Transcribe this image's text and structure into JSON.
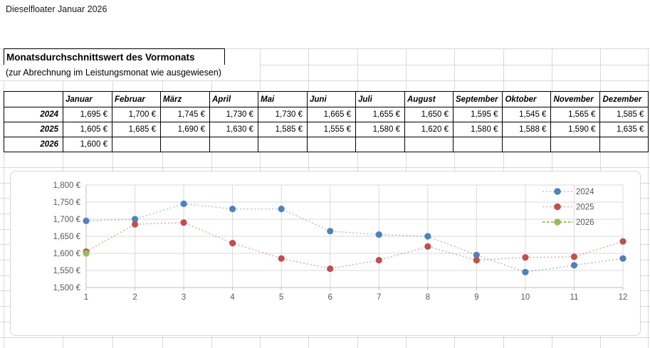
{
  "page": {
    "title": "Dieselfloater Januar 2026"
  },
  "section": {
    "heading": "Monatsdurchschnittswert des Vormonats",
    "subheading": "(zur Abrechnung im Leistungsmonat wie ausgewiesen)"
  },
  "table": {
    "corner": "",
    "columns": [
      "Januar",
      "Februar",
      "März",
      "April",
      "Mai",
      "Juni",
      "Juli",
      "August",
      "September",
      "Oktober",
      "November",
      "Dezember"
    ],
    "rows": [
      {
        "label": "2024",
        "values": [
          "1,695 €",
          "1,700 €",
          "1,745 €",
          "1,730 €",
          "1,730 €",
          "1,665 €",
          "1,655 €",
          "1,650 €",
          "1,595 €",
          "1,545 €",
          "1,565 €",
          "1,585 €"
        ]
      },
      {
        "label": "2025",
        "values": [
          "1,605 €",
          "1,685 €",
          "1,690 €",
          "1,630 €",
          "1,585 €",
          "1,555 €",
          "1,580 €",
          "1,620 €",
          "1,580 €",
          "1,588 €",
          "1,590 €",
          "1,635 €"
        ]
      },
      {
        "label": "2026",
        "values": [
          "1,600 €",
          "",
          "",
          "",
          "",
          "",
          "",
          "",
          "",
          "",
          "",
          ""
        ]
      }
    ]
  },
  "chart_data": {
    "type": "scatter",
    "x": [
      1,
      2,
      3,
      4,
      5,
      6,
      7,
      8,
      9,
      10,
      11,
      12
    ],
    "series": [
      {
        "name": "2024",
        "color": "#4F81BD",
        "values": [
          1695,
          1700,
          1745,
          1730,
          1730,
          1665,
          1655,
          1650,
          1595,
          1545,
          1565,
          1585
        ]
      },
      {
        "name": "2025",
        "color": "#C0504D",
        "values": [
          1605,
          1685,
          1690,
          1630,
          1585,
          1555,
          1580,
          1620,
          1580,
          1588,
          1590,
          1635
        ]
      },
      {
        "name": "2026",
        "color": "#9BBB59",
        "values": [
          1600,
          null,
          null,
          null,
          null,
          null,
          null,
          null,
          null,
          null,
          null,
          null
        ]
      }
    ],
    "title": "",
    "xlabel": "",
    "ylabel": "",
    "ylim": [
      1500,
      1800
    ],
    "ytick_step": 50,
    "y_ticks": [
      "1,800 €",
      "1,750 €",
      "1,700 €",
      "1,650 €",
      "1,600 €",
      "1,550 €",
      "1,500 €"
    ],
    "x_ticks": [
      "1",
      "2",
      "3",
      "4",
      "5",
      "6",
      "7",
      "8",
      "9",
      "10",
      "11",
      "12"
    ],
    "grid": true,
    "legend_position": "top-right",
    "line_style": "dotted",
    "axis_label_color": "#595959"
  }
}
